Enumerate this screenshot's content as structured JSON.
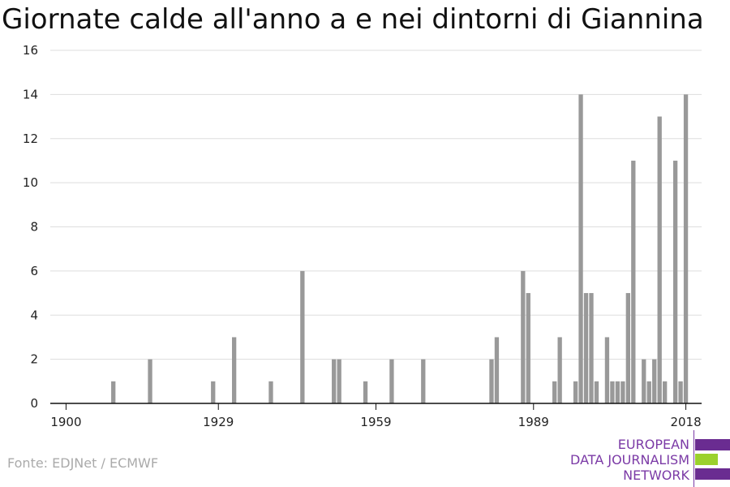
{
  "chart_data": {
    "type": "bar",
    "title": "Giornate calde all'anno a e nei dintorni di Giannina",
    "xlabel": "",
    "ylabel": "",
    "x_range": [
      1897,
      2021
    ],
    "ylim": [
      0,
      16
    ],
    "y_ticks": [
      0,
      2,
      4,
      6,
      8,
      10,
      12,
      14,
      16
    ],
    "x_ticks": [
      1900,
      1929,
      1959,
      1989,
      2018
    ],
    "grid": true,
    "bar_color": "#999999",
    "values": [
      {
        "year": 1909,
        "value": 1
      },
      {
        "year": 1916,
        "value": 2
      },
      {
        "year": 1928,
        "value": 1
      },
      {
        "year": 1932,
        "value": 3
      },
      {
        "year": 1939,
        "value": 1
      },
      {
        "year": 1945,
        "value": 6
      },
      {
        "year": 1951,
        "value": 2
      },
      {
        "year": 1952,
        "value": 2
      },
      {
        "year": 1957,
        "value": 1
      },
      {
        "year": 1962,
        "value": 2
      },
      {
        "year": 1968,
        "value": 2
      },
      {
        "year": 1981,
        "value": 2
      },
      {
        "year": 1982,
        "value": 3
      },
      {
        "year": 1987,
        "value": 6
      },
      {
        "year": 1988,
        "value": 5
      },
      {
        "year": 1993,
        "value": 1
      },
      {
        "year": 1994,
        "value": 3
      },
      {
        "year": 1997,
        "value": 1
      },
      {
        "year": 1998,
        "value": 14
      },
      {
        "year": 1999,
        "value": 5
      },
      {
        "year": 2000,
        "value": 5
      },
      {
        "year": 2001,
        "value": 1
      },
      {
        "year": 2003,
        "value": 3
      },
      {
        "year": 2004,
        "value": 1
      },
      {
        "year": 2005,
        "value": 1
      },
      {
        "year": 2006,
        "value": 1
      },
      {
        "year": 2007,
        "value": 5
      },
      {
        "year": 2008,
        "value": 11
      },
      {
        "year": 2010,
        "value": 2
      },
      {
        "year": 2011,
        "value": 1
      },
      {
        "year": 2012,
        "value": 2
      },
      {
        "year": 2013,
        "value": 13
      },
      {
        "year": 2014,
        "value": 1
      },
      {
        "year": 2016,
        "value": 11
      },
      {
        "year": 2017,
        "value": 1
      },
      {
        "year": 2018,
        "value": 14
      }
    ]
  },
  "source": "Fonte: EDJNet / ECMWF",
  "logo": {
    "lines": [
      "EUROPEAN",
      "DATA JOURNALISM",
      "NETWORK"
    ],
    "colors": {
      "purple": "#6a2c91",
      "green": "#9bd12d",
      "text": "#7b3aa6"
    }
  }
}
